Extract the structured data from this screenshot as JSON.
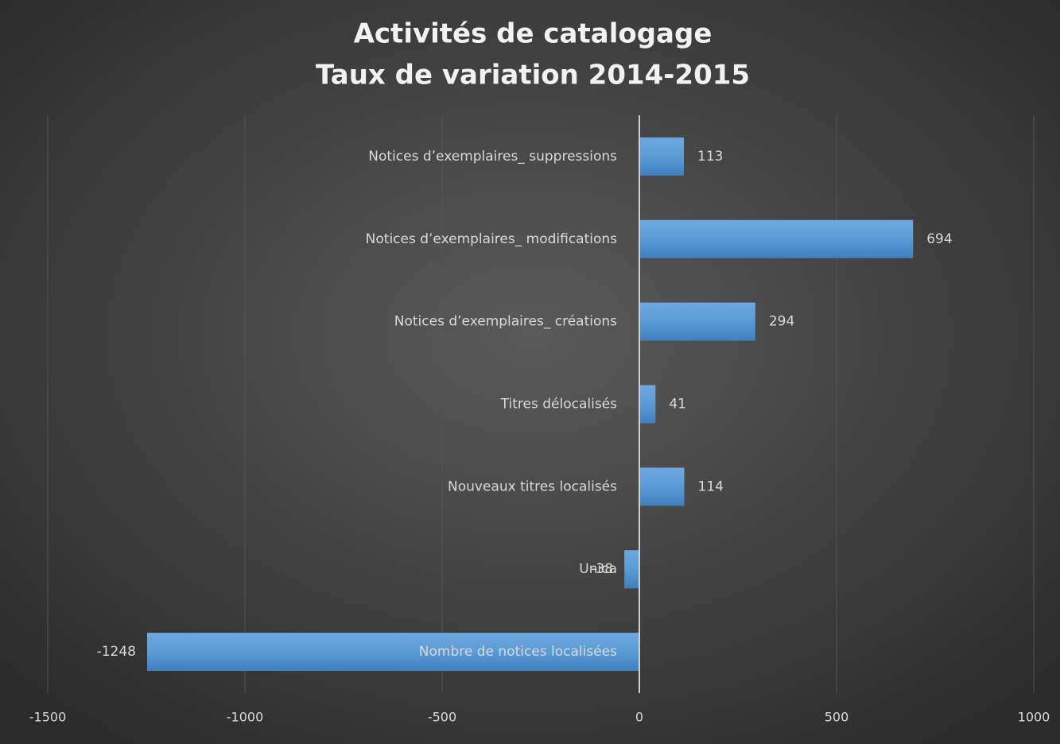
{
  "chart_data": {
    "type": "hbar",
    "title": "Activités de catalogage",
    "subtitle": "Taux de variation 2014-2015",
    "categories": [
      "Notices d’exemplaires_ suppressions",
      "Notices d’exemplaires_ modifications",
      "Notices d’exemplaires_ créations",
      "Titres délocalisés",
      "Nouveaux titres localisés",
      "Unica",
      "Nombre de notices localisées"
    ],
    "values": [
      113,
      694,
      294,
      41,
      114,
      -38,
      -1248
    ],
    "color": "#5b9bd5",
    "xlim": [
      -1500,
      1000
    ],
    "xticks": [
      -1500,
      -1000,
      -500,
      0,
      500,
      1000
    ],
    "grid": true
  }
}
